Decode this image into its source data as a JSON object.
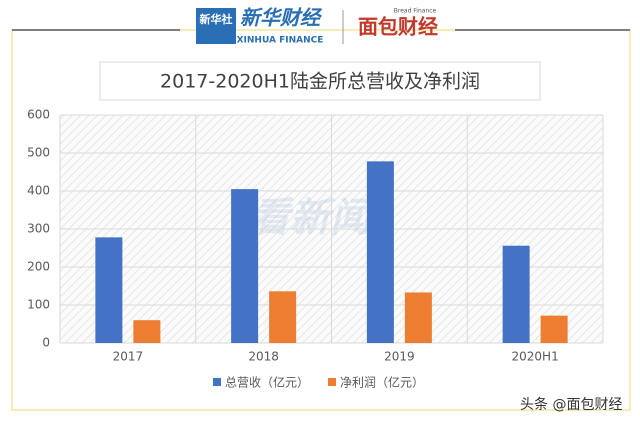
{
  "header": {
    "logo_left": "新华社",
    "brand": "新华财经",
    "brand_en": "XINHUA FINANCE",
    "logo_right": "面包财经",
    "logo_right_en": "Bread Finance"
  },
  "chart_data": {
    "type": "bar",
    "title": "2017-2020H1陆金所总营收及净利润",
    "categories": [
      "2017",
      "2018",
      "2019",
      "2020H1"
    ],
    "series": [
      {
        "name": "总营收（亿元）",
        "color": "#4472c4",
        "values": [
          278,
          405,
          478,
          256
        ]
      },
      {
        "name": "净利润（亿元）",
        "color": "#ed7d31",
        "values": [
          60,
          136,
          133,
          72
        ]
      }
    ],
    "ylim": [
      0,
      600
    ],
    "yticks": [
      0,
      100,
      200,
      300,
      400,
      500,
      600
    ],
    "grid": true,
    "legend": "bottom"
  },
  "watermark": "看新闻",
  "footer": "头条 @面包财经"
}
